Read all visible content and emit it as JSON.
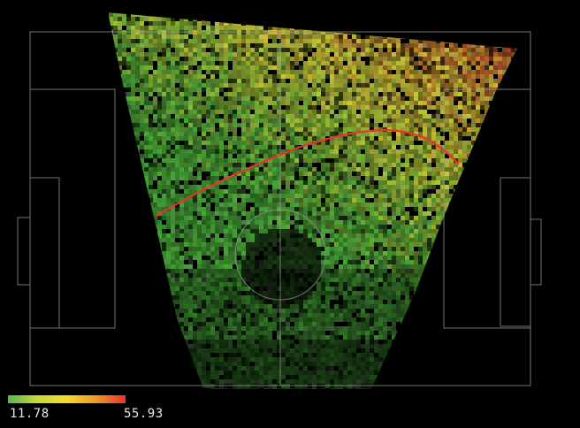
{
  "chart_data": {
    "type": "heatmap",
    "title": "",
    "colorbar": {
      "min_label": "11.78",
      "max_label": "55.93",
      "min": 11.78,
      "max": 55.93,
      "colors": [
        "#57b84a",
        "#c8d83c",
        "#f2dc2e",
        "#f0962c",
        "#e6362a"
      ]
    },
    "background": "#000000",
    "pitch_line_color": "#9a9a9a",
    "trend_line_color": "#e8352b"
  }
}
